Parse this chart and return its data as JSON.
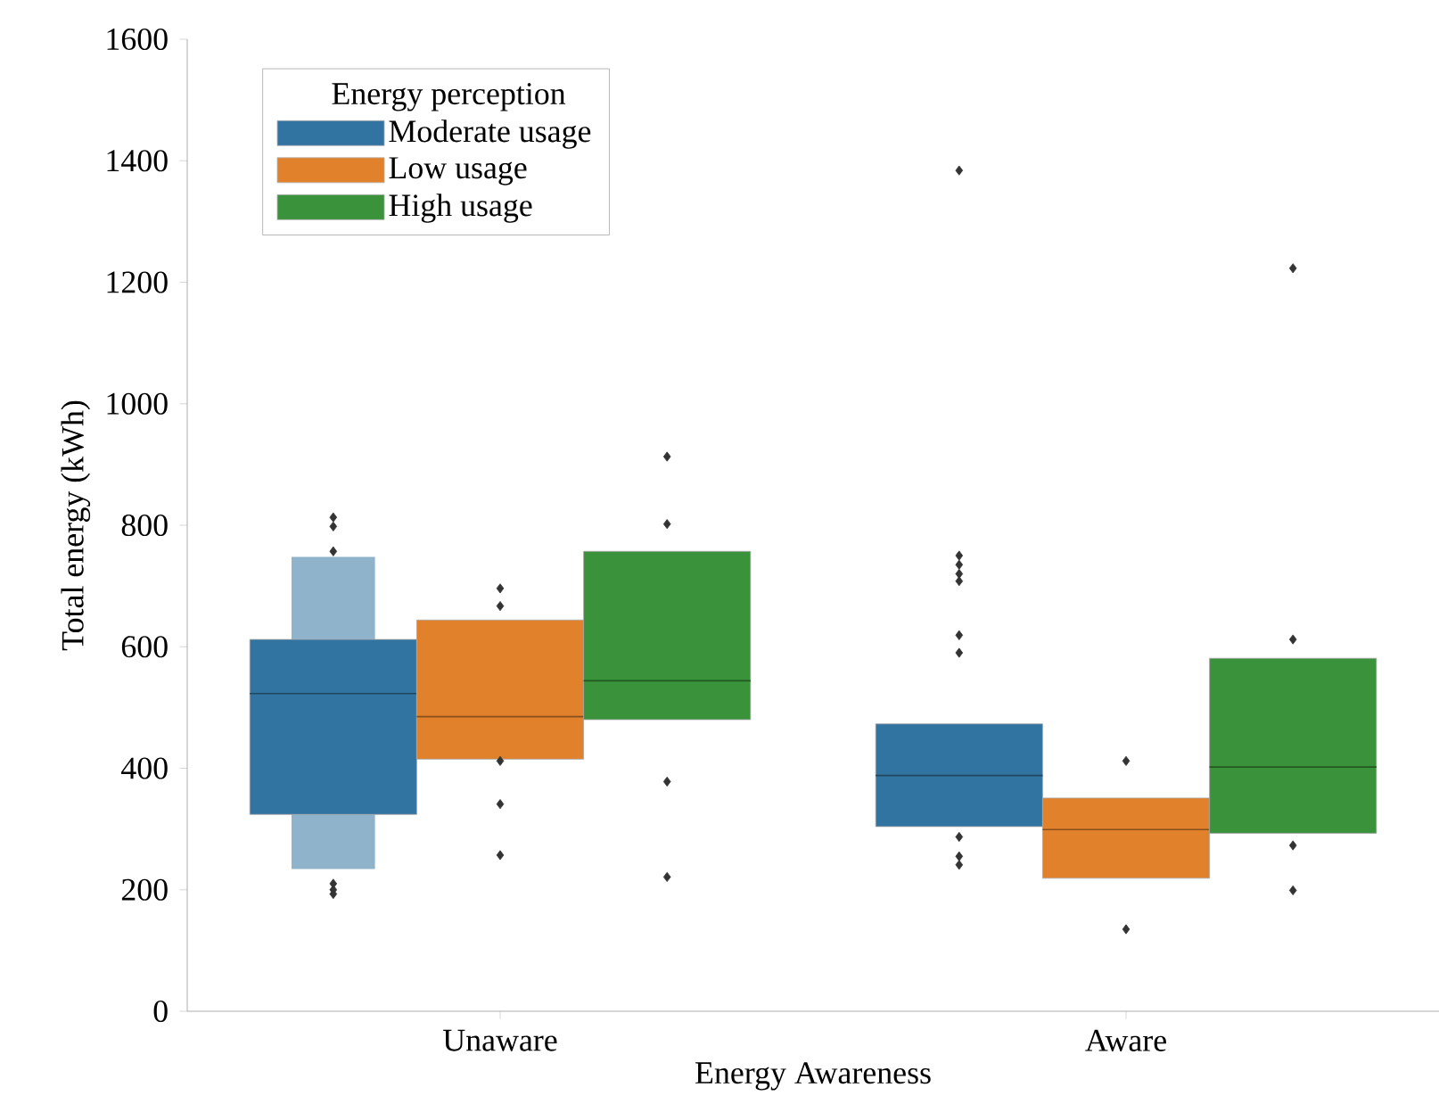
{
  "chart_data": {
    "type": "box",
    "xlabel": "Energy Awareness",
    "ylabel": "Total energy (kWh)",
    "legend_title": "Energy perception",
    "categories": [
      "Unaware",
      "Aware"
    ],
    "series": [
      {
        "name": "Moderate usage",
        "color": "#3274a1",
        "boxes": [
          {
            "low": 234,
            "q1": 324,
            "median": 523,
            "q3": 612,
            "high": 748,
            "outliers": [
              813,
              798,
              757,
              210,
              200,
              193
            ]
          },
          {
            "low": 304,
            "q1": 304,
            "median": 388,
            "q3": 473,
            "high": 473,
            "outliers": [
              1384,
              750,
              735,
              720,
              708,
              619,
              590,
              287,
              255,
              241
            ]
          }
        ]
      },
      {
        "name": "Low usage",
        "color": "#e1812c",
        "boxes": [
          {
            "low": 415,
            "q1": 415,
            "median": 485,
            "q3": 644,
            "high": 644,
            "outliers": [
              696,
              667,
              412,
              341,
              257
            ]
          },
          {
            "low": 219,
            "q1": 219,
            "median": 299,
            "q3": 351,
            "high": 351,
            "outliers": [
              412,
              135
            ]
          }
        ]
      },
      {
        "name": "High usage",
        "color": "#3a923a",
        "boxes": [
          {
            "low": 480,
            "q1": 480,
            "median": 544,
            "q3": 757,
            "high": 757,
            "outliers": [
              913,
              802,
              378,
              221
            ]
          },
          {
            "low": 293,
            "q1": 293,
            "median": 402,
            "q3": 581,
            "high": 581,
            "outliers": [
              1223,
              612,
              273,
              199
            ]
          }
        ]
      }
    ],
    "ylim": [
      0,
      1600
    ],
    "yticks": [
      0,
      200,
      400,
      600,
      800,
      1000,
      1200,
      1400,
      1600
    ],
    "grid": false,
    "legend": "top left",
    "marker": "diamond"
  }
}
